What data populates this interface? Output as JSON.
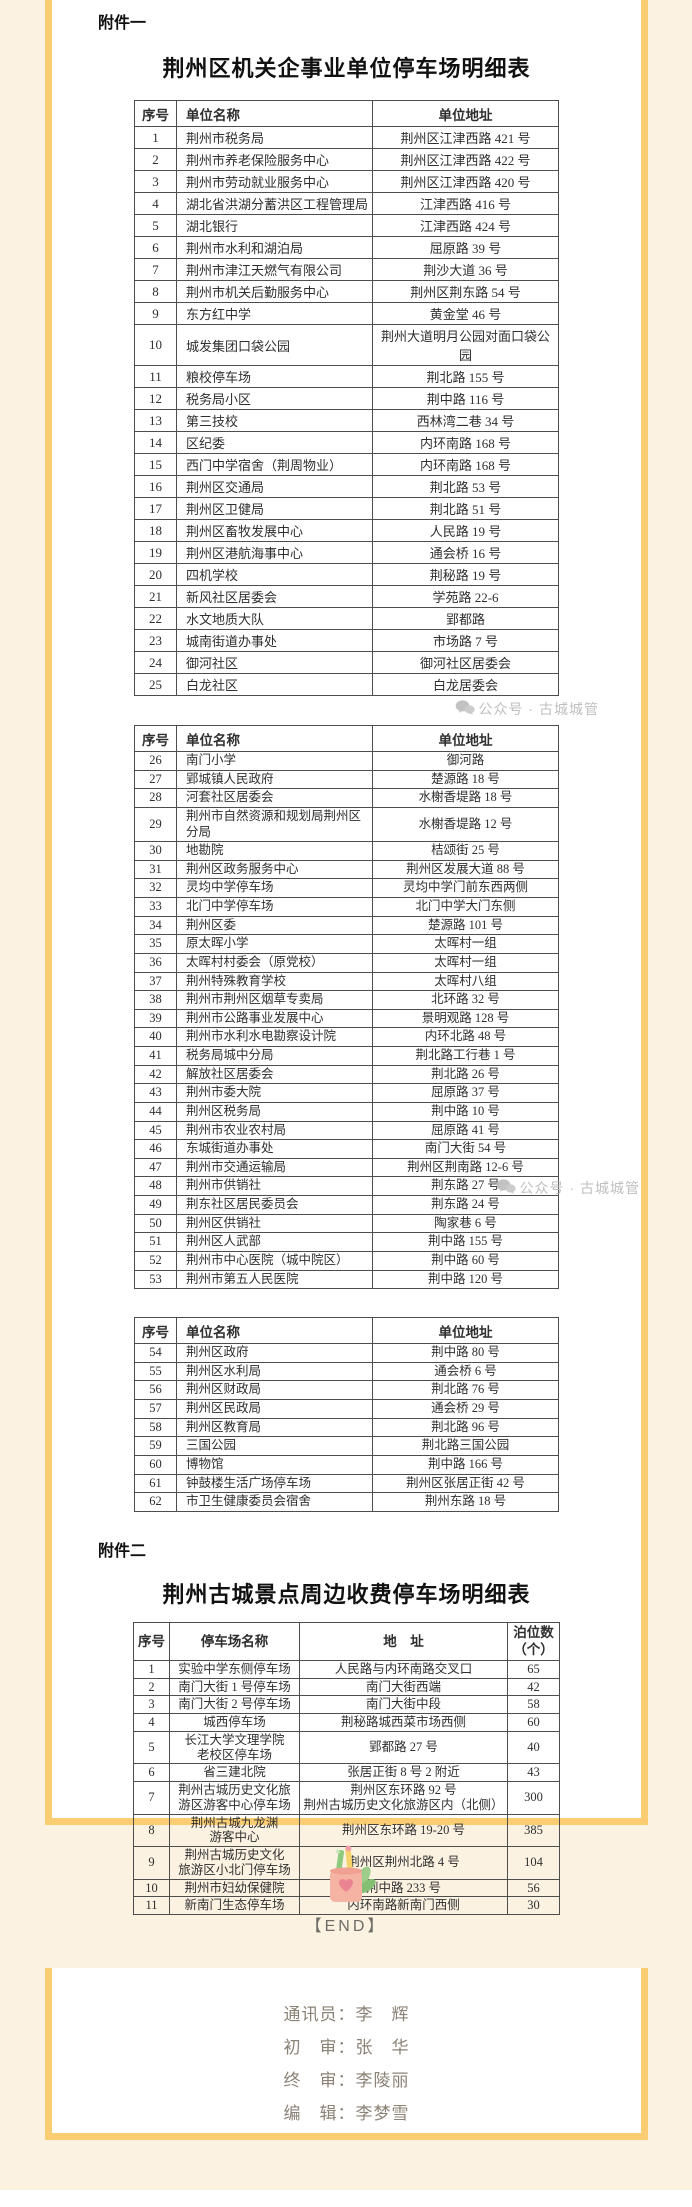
{
  "page": {
    "background": "#fcf2e2",
    "card_background": "#ffffff",
    "accent_border": "#fbcd73",
    "table_border": "#4d4d4d",
    "text_color": "#2f2f2f",
    "watermark": {
      "icon": "wechat-bubbles-icon",
      "text": "公众号 · 古城城管",
      "color": "#b9b9b9"
    },
    "end_marker": "【END】",
    "end_illustration": "pencil-cup-with-leaves"
  },
  "attachment1": {
    "label": "附件一",
    "title": "荆州区机关企事业单位停车场明细表"
  },
  "attachment2": {
    "label": "附件二",
    "title": "荆州古城景点周边收费停车场明细表"
  },
  "tables": [
    {
      "id": "units-1",
      "columns": [
        "序号",
        "单位名称",
        "单位地址"
      ],
      "rows": [
        [
          "1",
          "荆州市税务局",
          "荆州区江津西路 421 号"
        ],
        [
          "2",
          "荆州市养老保险服务中心",
          "荆州区江津西路 422 号"
        ],
        [
          "3",
          "荆州市劳动就业服务中心",
          "荆州区江津西路 420 号"
        ],
        [
          "4",
          "湖北省洪湖分蓄洪区工程管理局",
          "江津西路 416 号"
        ],
        [
          "5",
          "湖北银行",
          "江津西路 424 号"
        ],
        [
          "6",
          "荆州市水利和湖泊局",
          "屈原路 39 号"
        ],
        [
          "7",
          "荆州市津江天燃气有限公司",
          "荆沙大道 36 号"
        ],
        [
          "8",
          "荆州市机关后勤服务中心",
          "荆州区荆东路 54 号"
        ],
        [
          "9",
          "东方红中学",
          "黄金堂 46 号"
        ],
        [
          "10",
          "城发集团口袋公园",
          "荆州大道明月公园对面口袋公园"
        ],
        [
          "11",
          "粮校停车场",
          "荆北路 155 号"
        ],
        [
          "12",
          "税务局小区",
          "荆中路 116 号"
        ],
        [
          "13",
          "第三技校",
          "西林湾二巷 34 号"
        ],
        [
          "14",
          "区纪委",
          "内环南路 168 号"
        ],
        [
          "15",
          "西门中学宿舍（荆周物业）",
          "内环南路 168 号"
        ],
        [
          "16",
          "荆州区交通局",
          "荆北路 53 号"
        ],
        [
          "17",
          "荆州区卫健局",
          "荆北路 51 号"
        ],
        [
          "18",
          "荆州区畜牧发展中心",
          "人民路 19 号"
        ],
        [
          "19",
          "荆州区港航海事中心",
          "通会桥 16 号"
        ],
        [
          "20",
          "四机学校",
          "荆秘路 19 号"
        ],
        [
          "21",
          "新风社区居委会",
          "学苑路 22-6"
        ],
        [
          "22",
          "水文地质大队",
          "郢都路"
        ],
        [
          "23",
          "城南街道办事处",
          "市场路 7 号"
        ],
        [
          "24",
          "御河社区",
          "御河社区居委会"
        ],
        [
          "25",
          "白龙社区",
          "白龙居委会"
        ]
      ]
    },
    {
      "id": "units-2",
      "columns": [
        "序号",
        "单位名称",
        "单位地址"
      ],
      "rows": [
        [
          "26",
          "南门小学",
          "御河路"
        ],
        [
          "27",
          "郢城镇人民政府",
          "楚源路 18 号"
        ],
        [
          "28",
          "河套社区居委会",
          "水榭香堤路 18 号"
        ],
        [
          "29",
          "荆州市自然资源和规划局荆州区分局",
          "水榭香堤路 12 号"
        ],
        [
          "30",
          "地勘院",
          "桔颂街 25 号"
        ],
        [
          "31",
          "荆州区政务服务中心",
          "荆州区发展大道 88 号"
        ],
        [
          "32",
          "灵均中学停车场",
          "灵均中学门前东西两侧"
        ],
        [
          "33",
          "北门中学停车场",
          "北门中学大门东侧"
        ],
        [
          "34",
          "荆州区委",
          "楚源路 101 号"
        ],
        [
          "35",
          "原太晖小学",
          "太晖村一组"
        ],
        [
          "36",
          "太晖村村委会（原党校）",
          "太晖村一组"
        ],
        [
          "37",
          "荆州特殊教育学校",
          "太晖村八组"
        ],
        [
          "38",
          "荆州市荆州区烟草专卖局",
          "北环路 32 号"
        ],
        [
          "39",
          "荆州市公路事业发展中心",
          "景明观路 128 号"
        ],
        [
          "40",
          "荆州市水利水电勘察设计院",
          "内环北路 48 号"
        ],
        [
          "41",
          "税务局城中分局",
          "荆北路工行巷 1 号"
        ],
        [
          "42",
          "解放社区居委会",
          "荆北路 26 号"
        ],
        [
          "43",
          "荆州市委大院",
          "屈原路 37 号"
        ],
        [
          "44",
          "荆州区税务局",
          "荆中路 10 号"
        ],
        [
          "45",
          "荆州市农业农村局",
          "屈原路 41 号"
        ],
        [
          "46",
          "东城街道办事处",
          "南门大街 54 号"
        ],
        [
          "47",
          "荆州市交通运输局",
          "荆州区荆南路 12-6 号"
        ],
        [
          "48",
          "荆州市供销社",
          "荆东路 27 号"
        ],
        [
          "49",
          "荆东社区居民委员会",
          "荆东路 24 号"
        ],
        [
          "50",
          "荆州区供销社",
          "陶家巷 6 号"
        ],
        [
          "51",
          "荆州区人武部",
          "荆中路 155 号"
        ],
        [
          "52",
          "荆州市中心医院（城中院区）",
          "荆中路 60 号"
        ],
        [
          "53",
          "荆州市第五人民医院",
          "荆中路 120 号"
        ]
      ]
    },
    {
      "id": "units-3",
      "columns": [
        "序号",
        "单位名称",
        "单位地址"
      ],
      "rows": [
        [
          "54",
          "荆州区政府",
          "荆中路 80 号"
        ],
        [
          "55",
          "荆州区水利局",
          "通会桥 6 号"
        ],
        [
          "56",
          "荆州区财政局",
          "荆北路 76 号"
        ],
        [
          "57",
          "荆州区民政局",
          "通会桥 29 号"
        ],
        [
          "58",
          "荆州区教育局",
          "荆北路 96 号"
        ],
        [
          "59",
          "三国公园",
          "荆北路三国公园"
        ],
        [
          "60",
          "博物馆",
          "荆中路 166 号"
        ],
        [
          "61",
          "钟鼓楼生活广场停车场",
          "荆州区张居正街 42 号"
        ],
        [
          "62",
          "市卫生健康委员会宿舍",
          "荆州东路 18 号"
        ]
      ]
    },
    {
      "id": "paid-parking",
      "columns": [
        "序号",
        "停车场名称",
        "地　址",
        "泊位数\n（个）"
      ],
      "rows": [
        [
          "1",
          "实验中学东侧停车场",
          "人民路与内环南路交叉口",
          "65"
        ],
        [
          "2",
          "南门大街 1 号停车场",
          "南门大街西端",
          "42"
        ],
        [
          "3",
          "南门大街 2 号停车场",
          "南门大街中段",
          "58"
        ],
        [
          "4",
          "城西停车场",
          "荆秘路城西菜市场西侧",
          "60"
        ],
        [
          "5",
          "长江大学文理学院\n老校区停车场",
          "郢都路 27 号",
          "40"
        ],
        [
          "6",
          "省三建北院",
          "张居正街 8 号 2 附近",
          "43"
        ],
        [
          "7",
          "荆州古城历史文化旅\n游区游客中心停车场",
          "荆州区东环路 92 号\n荆州古城历史文化旅游区内（北侧）",
          "300"
        ],
        [
          "8",
          "荆州古城九龙渊\n游客中心",
          "荆州区东环路 19-20 号",
          "385"
        ],
        [
          "9",
          "荆州古城历史文化\n旅游区小北门停车场",
          "荆州区荆州北路 4 号",
          "104"
        ],
        [
          "10",
          "荆州市妇幼保健院",
          "荆中路 233 号",
          "56"
        ],
        [
          "11",
          "新南门生态停车场",
          "内环南路新南门西侧",
          "30"
        ]
      ]
    }
  ],
  "footer": {
    "credits": [
      "通讯员：李　辉",
      "初　审：张　华",
      "终　审：李陵丽",
      "编　辑：李梦雪"
    ]
  }
}
